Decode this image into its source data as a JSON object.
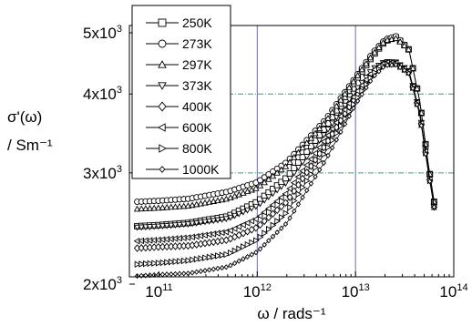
{
  "chart_data": {
    "type": "scatter",
    "title": "",
    "xlabel": "ω / rads⁻¹",
    "ylabel": [
      "σ'(ω)",
      "/ Sm⁻¹"
    ],
    "x_scale": "log",
    "y_scale": "log",
    "xlim": [
      50000000000,
      100000000000000
    ],
    "ylim": [
      2000,
      5000
    ],
    "x_ticks": [
      {
        "value": 100000000000,
        "mantissa": "10",
        "exp": "11"
      },
      {
        "value": 1000000000000,
        "mantissa": "10",
        "exp": "12"
      },
      {
        "value": 10000000000000,
        "mantissa": "10",
        "exp": "13"
      },
      {
        "value": 100000000000000,
        "mantissa": "10",
        "exp": "14"
      }
    ],
    "y_ticks": [
      {
        "value": 2000,
        "mantissa": "2x10",
        "exp": "3"
      },
      {
        "value": 3000,
        "mantissa": "3x10",
        "exp": "3"
      },
      {
        "value": 4000,
        "mantissa": "4x10",
        "exp": "3"
      },
      {
        "value": 5000,
        "mantissa": "5x10",
        "exp": "3"
      }
    ],
    "vertical_gridlines_at": [
      1000000000000,
      10000000000000
    ],
    "horizontal_gridlines_at": [
      3000,
      4000
    ],
    "legend_position": "top-left",
    "grid": true,
    "series": [
      {
        "name": "250K",
        "marker": "square",
        "x": [
          60000000000,
          100000000000,
          200000000000,
          500000000000,
          1000000000000,
          2000000000000,
          5000000000000,
          10000000000000,
          15000000000000,
          20000000000000,
          26000000000000,
          35000000000000,
          45000000000000,
          55000000000000,
          63000000000000
        ],
        "y": [
          2470,
          2480,
          2500,
          2560,
          2700,
          2950,
          3550,
          4200,
          4600,
          4850,
          4920,
          4700,
          3900,
          3100,
          2700
        ]
      },
      {
        "name": "273K",
        "marker": "circle",
        "x": [
          60000000000,
          100000000000,
          200000000000,
          500000000000,
          1000000000000,
          2000000000000,
          5000000000000,
          10000000000000,
          15000000000000,
          20000000000000,
          26000000000000,
          35000000000000,
          45000000000000,
          55000000000000,
          63000000000000
        ],
        "y": [
          2700,
          2710,
          2730,
          2800,
          2900,
          3120,
          3650,
          4250,
          4650,
          4880,
          4940,
          4700,
          3900,
          3100,
          2700
        ]
      },
      {
        "name": "297K",
        "marker": "triangle-up",
        "x": [
          60000000000,
          100000000000,
          200000000000,
          500000000000,
          1000000000000,
          2000000000000,
          5000000000000,
          10000000000000,
          15000000000000,
          20000000000000,
          26000000000000,
          35000000000000,
          45000000000000,
          55000000000000,
          63000000000000
        ],
        "y": [
          2630,
          2640,
          2660,
          2730,
          2840,
          3080,
          3620,
          4230,
          4620,
          4860,
          4900,
          4700,
          3900,
          3100,
          2700
        ]
      },
      {
        "name": "373K",
        "marker": "triangle-down",
        "x": [
          60000000000,
          100000000000,
          200000000000,
          500000000000,
          1000000000000,
          2000000000000,
          5000000000000,
          10000000000000,
          15000000000000,
          20000000000000,
          26000000000000,
          35000000000000,
          45000000000000,
          55000000000000,
          63000000000000
        ],
        "y": [
          2460,
          2470,
          2490,
          2540,
          2660,
          2900,
          3480,
          4050,
          4380,
          4500,
          4490,
          4350,
          3750,
          3050,
          2650
        ]
      },
      {
        "name": "400K",
        "marker": "diamond",
        "x": [
          60000000000,
          100000000000,
          200000000000,
          500000000000,
          1000000000000,
          2000000000000,
          5000000000000,
          10000000000000,
          15000000000000,
          20000000000000,
          26000000000000,
          35000000000000,
          45000000000000,
          55000000000000,
          63000000000000
        ],
        "y": [
          2280,
          2290,
          2300,
          2350,
          2460,
          2700,
          3330,
          3960,
          4330,
          4480,
          4470,
          4330,
          3730,
          3030,
          2650
        ]
      },
      {
        "name": "600K",
        "marker": "triangle-left",
        "x": [
          60000000000,
          100000000000,
          200000000000,
          500000000000,
          1000000000000,
          2000000000000,
          5000000000000,
          10000000000000,
          15000000000000,
          20000000000000,
          26000000000000,
          35000000000000,
          45000000000000,
          55000000000000,
          63000000000000
        ],
        "y": [
          2340,
          2350,
          2370,
          2420,
          2540,
          2790,
          3400,
          4000,
          4350,
          4490,
          4480,
          4340,
          3740,
          3040,
          2650
        ]
      },
      {
        "name": "800K",
        "marker": "triangle-right",
        "x": [
          60000000000,
          100000000000,
          200000000000,
          500000000000,
          1000000000000,
          2000000000000,
          5000000000000,
          10000000000000,
          15000000000000,
          20000000000000,
          26000000000000,
          35000000000000,
          45000000000000,
          55000000000000,
          63000000000000
        ],
        "y": [
          2150,
          2160,
          2180,
          2230,
          2350,
          2600,
          3250,
          3900,
          4300,
          4460,
          4460,
          4320,
          3720,
          3020,
          2650
        ]
      },
      {
        "name": "1000K",
        "marker": "small-diamond",
        "x": [
          60000000000,
          100000000000,
          200000000000,
          500000000000,
          1000000000000,
          2000000000000,
          5000000000000,
          10000000000000,
          15000000000000,
          20000000000000,
          26000000000000,
          35000000000000,
          45000000000000,
          55000000000000,
          63000000000000
        ],
        "y": [
          2060,
          2070,
          2080,
          2130,
          2250,
          2500,
          3150,
          3850,
          4250,
          4440,
          4450,
          4310,
          3710,
          3010,
          2650
        ]
      }
    ]
  }
}
